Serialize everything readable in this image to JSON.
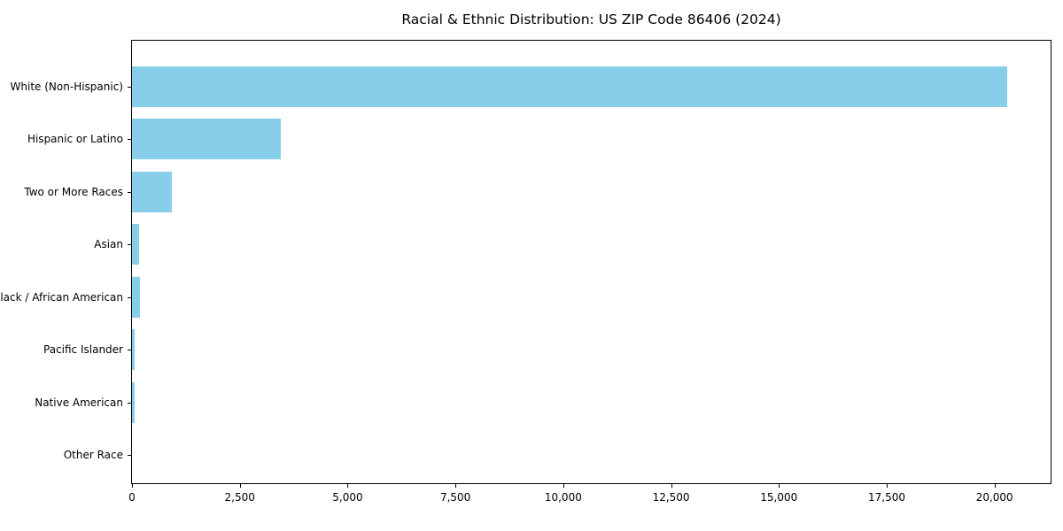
{
  "chart_data": {
    "type": "bar",
    "orientation": "horizontal",
    "title": "Racial & Ethnic Distribution: US ZIP Code 86406 (2024)",
    "categories": [
      "White (Non-Hispanic)",
      "Hispanic or Latino",
      "Two or More Races",
      "Asian",
      "Black / African American",
      "Pacific Islander",
      "Native American",
      "Other Race"
    ],
    "values": [
      20300,
      3450,
      925,
      165,
      185,
      60,
      70,
      0
    ],
    "bar_color": "#87CEEB",
    "text_color": "#000000",
    "spine_color": "#000000",
    "background_color": "#ffffff",
    "xlabel": "",
    "ylabel": "",
    "xlim": [
      0,
      21300
    ],
    "x_ticks": [
      {
        "label": "0",
        "value": 0
      },
      {
        "label": "2,500",
        "value": 2500
      },
      {
        "label": "5,000",
        "value": 5000
      },
      {
        "label": "7,500",
        "value": 7500
      },
      {
        "label": "10,000",
        "value": 10000
      },
      {
        "label": "12,500",
        "value": 12500
      },
      {
        "label": "15,000",
        "value": 15000
      },
      {
        "label": "17,500",
        "value": 17500
      },
      {
        "label": "20,000",
        "value": 20000
      }
    ],
    "grid": "off",
    "legend": "none"
  }
}
